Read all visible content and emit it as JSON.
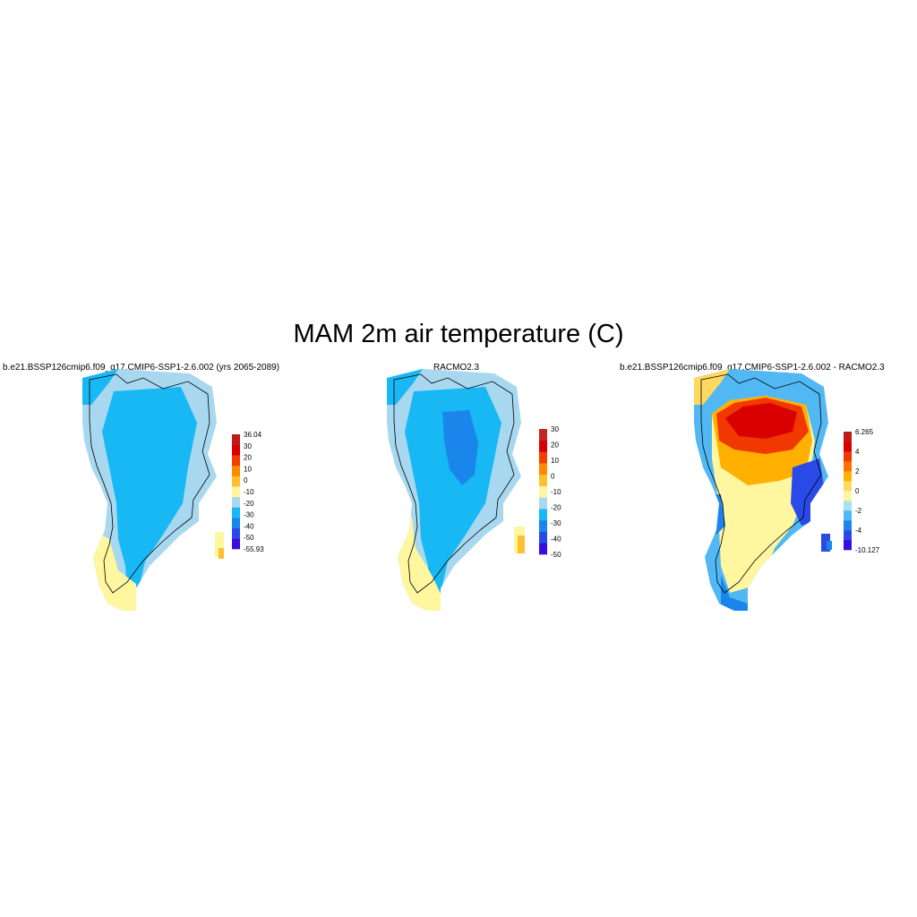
{
  "title": "MAM 2m air temperature (C)",
  "panels": [
    {
      "id": "model",
      "title": "b.e21.BSSP126cmip6.f09_g17.CMIP6-SSP1-2.6.002 (yrs 2065-2089)",
      "colorbar": {
        "colors": [
          "#3a0ce0",
          "#2a4ae8",
          "#1a86ec",
          "#18b8f4",
          "#a8d8f0",
          "#fff6a0",
          "#ffc030",
          "#ff8a00",
          "#f04000",
          "#d80000",
          "#c01818"
        ],
        "labels": [
          "-55.93",
          "-50",
          "-40",
          "-30",
          "-20",
          "-10",
          "0",
          "10",
          "20",
          "30",
          "36.04"
        ]
      }
    },
    {
      "id": "obs",
      "title": "RACMO2.3",
      "colorbar": {
        "colors": [
          "#3a0ce0",
          "#2a4ae8",
          "#1a86ec",
          "#18b8f4",
          "#a8d8f0",
          "#fff6a0",
          "#ffc030",
          "#ff8a00",
          "#f04000",
          "#d80000",
          "#c02828"
        ],
        "labels": [
          "-50",
          "-40",
          "-30",
          "-20",
          "-10",
          "0",
          "10",
          "20",
          "30"
        ]
      }
    },
    {
      "id": "diff",
      "title": "b.e21.BSSP126cmip6.f09_g17.CMIP6-SSP1-2.6.002 - RACMO2.3",
      "colorbar": {
        "colors": [
          "#3a0ce0",
          "#2a4ae8",
          "#1a86ec",
          "#52b8f4",
          "#a8e0f8",
          "#fff6a0",
          "#ffd860",
          "#ffb000",
          "#ff7000",
          "#f03800",
          "#d80000",
          "#c01818"
        ],
        "labels": [
          "-10.127",
          "-4",
          "-2",
          "0",
          "2",
          "4",
          "6.265"
        ]
      }
    }
  ]
}
